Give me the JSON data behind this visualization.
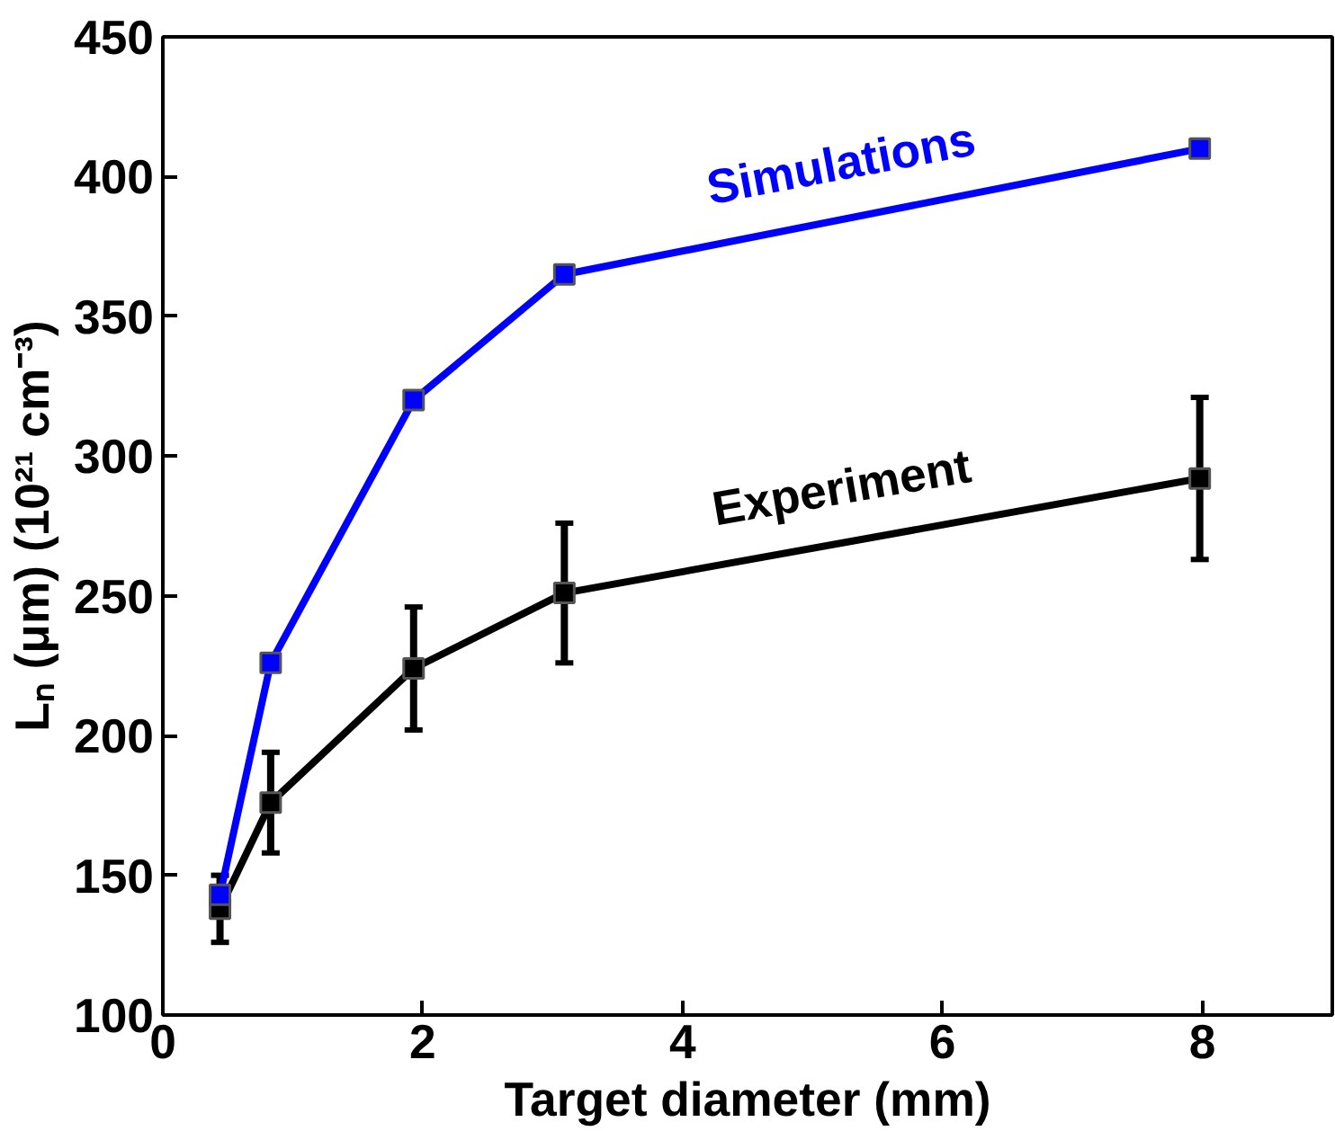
{
  "chart_data": {
    "type": "line",
    "xlabel": "Target diameter (mm)",
    "ylabel": "Lₙ (μm) (10²¹ cm⁻³)",
    "xlim": [
      0,
      9
    ],
    "ylim": [
      100,
      450
    ],
    "xticks": [
      0,
      2,
      4,
      6,
      8
    ],
    "yticks": [
      100,
      150,
      200,
      250,
      300,
      350,
      400,
      450
    ],
    "grid": false,
    "marker": "square",
    "line_style": "solid",
    "series": [
      {
        "name": "Simulations",
        "color": "#0000ff",
        "x": [
          0.44,
          0.83,
          1.93,
          3.09,
          7.98
        ],
        "values": [
          143,
          226,
          320,
          365,
          410
        ]
      },
      {
        "name": "Experiment",
        "color": "#000000",
        "x": [
          0.44,
          0.83,
          1.93,
          3.09,
          7.98
        ],
        "values": [
          138,
          176,
          224,
          251,
          292
        ],
        "errors": [
          12,
          18,
          22,
          25,
          29
        ]
      }
    ]
  }
}
